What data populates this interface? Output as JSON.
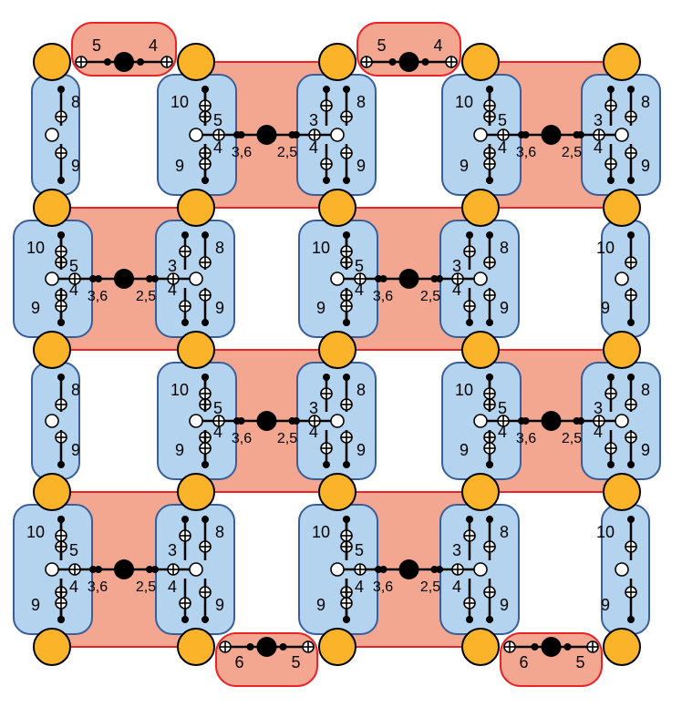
{
  "colors": {
    "red_fill": "#f3a791",
    "red_stroke": "#e8242a",
    "blue_fill": "#b3d3ee",
    "blue_stroke": "#3a5e9a",
    "qubit_fill": "#fbb42a",
    "qubit_stroke": "#000000"
  },
  "icons": {
    "data_node": "filled-black-circle",
    "measure_node": "hollow-white-circle",
    "junction": "circled-plus"
  },
  "cells": [
    {
      "kind": "bridge",
      "left": "5",
      "right": "4"
    },
    {
      "kind": "bridge",
      "left": "5",
      "right": "4"
    },
    {
      "kind": "hub",
      "left": "3,6",
      "right": "2,5"
    },
    {
      "kind": "hub",
      "left": "3,6",
      "right": "2,5"
    },
    {
      "kind": "hub",
      "left": "3,6",
      "right": "2,5"
    },
    {
      "kind": "hub",
      "left": "3,6",
      "right": "2,5"
    },
    {
      "kind": "hub",
      "left": "3,6",
      "right": "2,5"
    },
    {
      "kind": "hub",
      "left": "3,6",
      "right": "2,5"
    },
    {
      "kind": "hub",
      "left": "3,6",
      "right": "2,5"
    },
    {
      "kind": "hub",
      "left": "3,6",
      "right": "2,5"
    },
    {
      "kind": "bridge",
      "left": "6",
      "right": "5"
    },
    {
      "kind": "bridge",
      "left": "6",
      "right": "5"
    }
  ],
  "couplers": [
    {
      "top": "8",
      "bottom": "9"
    },
    {
      "top": "10",
      "bottom": "9",
      "side_top": "5",
      "side_bottom": "4"
    },
    {
      "top": "8",
      "bottom": "9",
      "side_top": "3",
      "side_bottom": "4"
    },
    {
      "top": "10",
      "bottom": "9",
      "side_top": "5",
      "side_bottom": "4"
    },
    {
      "top": "8",
      "bottom": "9",
      "side_top": "3",
      "side_bottom": "4"
    },
    {
      "top": "10",
      "bottom": "9",
      "side_top": "5",
      "side_bottom": "4"
    },
    {
      "top": "8",
      "bottom": "9",
      "side_top": "3",
      "side_bottom": "4"
    },
    {
      "top": "10",
      "bottom": "9",
      "side_top": "5",
      "side_bottom": "4"
    },
    {
      "top": "8",
      "bottom": "9",
      "side_top": "3",
      "side_bottom": "4"
    },
    {
      "top": "10",
      "bottom": "9"
    },
    {
      "top": "8",
      "bottom": "9"
    },
    {
      "top": "10",
      "bottom": "9",
      "side_top": "5",
      "side_bottom": "4"
    },
    {
      "top": "8",
      "bottom": "9",
      "side_top": "3",
      "side_bottom": "4"
    },
    {
      "top": "10",
      "bottom": "9",
      "side_top": "5",
      "side_bottom": "4"
    },
    {
      "top": "8",
      "bottom": "9",
      "side_top": "3",
      "side_bottom": "4"
    },
    {
      "top": "10",
      "bottom": "9",
      "side_top": "5",
      "side_bottom": "4"
    },
    {
      "top": "8",
      "bottom": "9",
      "side_top": "3",
      "side_bottom": "4"
    },
    {
      "top": "10",
      "bottom": "9",
      "side_top": "5",
      "side_bottom": "4"
    },
    {
      "top": "8",
      "bottom": "9",
      "side_top": "3",
      "side_bottom": "4"
    },
    {
      "top": "10",
      "bottom": "9"
    }
  ]
}
